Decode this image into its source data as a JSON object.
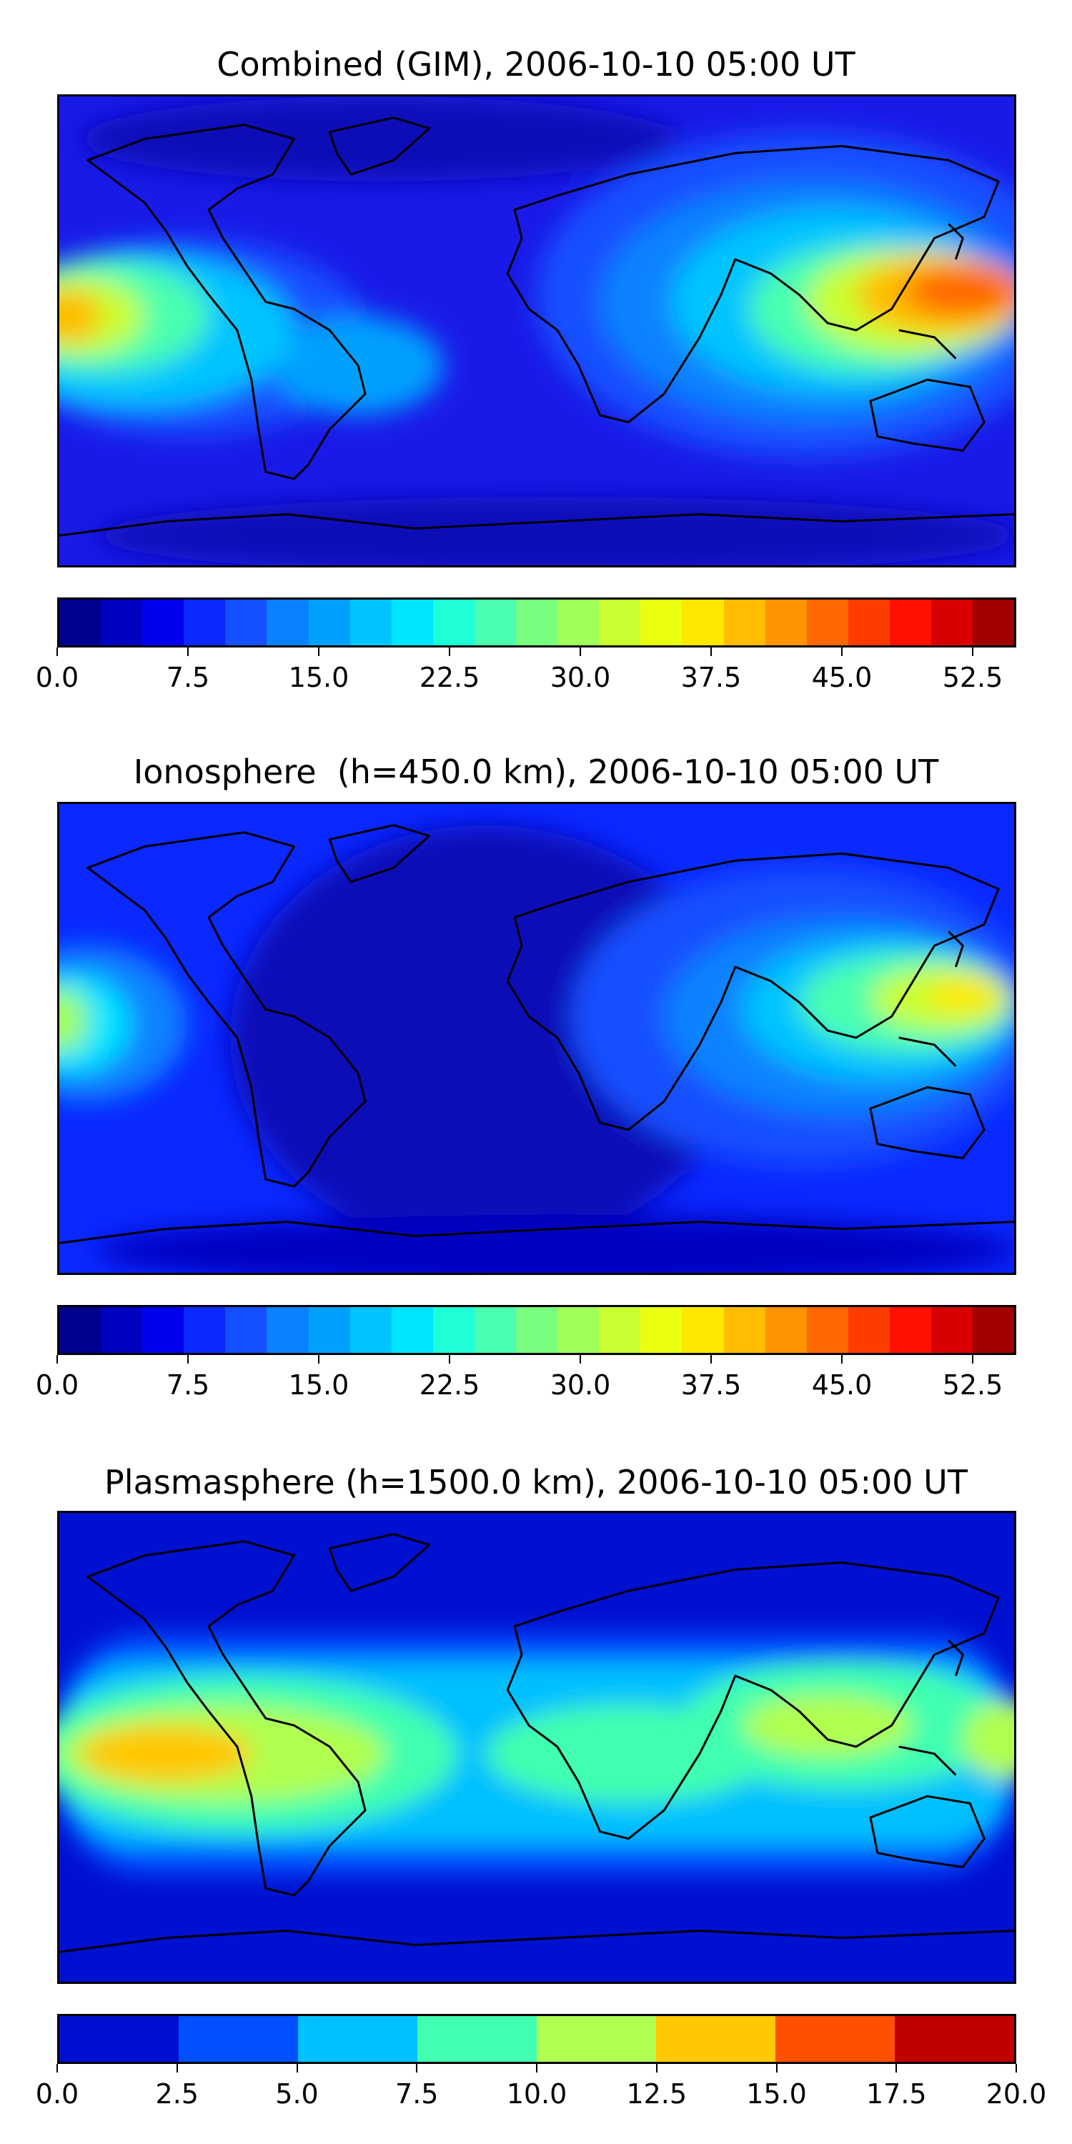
{
  "panels": [
    {
      "title": "Combined (GIM), 2006-10-10 05:00 UT",
      "colorbar": {
        "colors": [
          "#00008f",
          "#0000c0",
          "#0000ef",
          "#0a28ff",
          "#1450ff",
          "#0a82ff",
          "#00a0ff",
          "#00c4ff",
          "#00e4ff",
          "#1effd8",
          "#4affb0",
          "#78ff80",
          "#a0ff58",
          "#c8ff30",
          "#eaff10",
          "#ffe800",
          "#ffbc00",
          "#ff9400",
          "#ff6800",
          "#ff3c00",
          "#ff1000",
          "#d80000",
          "#a00000"
        ],
        "tick_values": [
          "0.0",
          "7.5",
          "15.0",
          "22.5",
          "30.0",
          "37.5",
          "45.0",
          "52.5"
        ],
        "min": 0,
        "max": 55
      }
    },
    {
      "title": "Ionosphere  (h=450.0 km), 2006-10-10 05:00 UT",
      "colorbar": {
        "colors": [
          "#00008f",
          "#0000c0",
          "#0000ef",
          "#0a28ff",
          "#1450ff",
          "#0a82ff",
          "#00a0ff",
          "#00c4ff",
          "#00e4ff",
          "#1effd8",
          "#4affb0",
          "#78ff80",
          "#a0ff58",
          "#c8ff30",
          "#eaff10",
          "#ffe800",
          "#ffbc00",
          "#ff9400",
          "#ff6800",
          "#ff3c00",
          "#ff1000",
          "#d80000",
          "#a00000"
        ],
        "tick_values": [
          "0.0",
          "7.5",
          "15.0",
          "22.5",
          "30.0",
          "37.5",
          "45.0",
          "52.5"
        ],
        "min": 0,
        "max": 55
      }
    },
    {
      "title": "Plasmasphere (h=1500.0 km), 2006-10-10 05:00 UT",
      "colorbar": {
        "colors": [
          "#0010d0",
          "#0050ff",
          "#00c0ff",
          "#40ffb0",
          "#b0ff50",
          "#ffc800",
          "#ff5000",
          "#c00000"
        ],
        "tick_values": [
          "0.0",
          "2.5",
          "5.0",
          "7.5",
          "10.0",
          "12.5",
          "15.0",
          "17.5",
          "20.0"
        ],
        "min": 0,
        "max": 20
      }
    }
  ]
}
